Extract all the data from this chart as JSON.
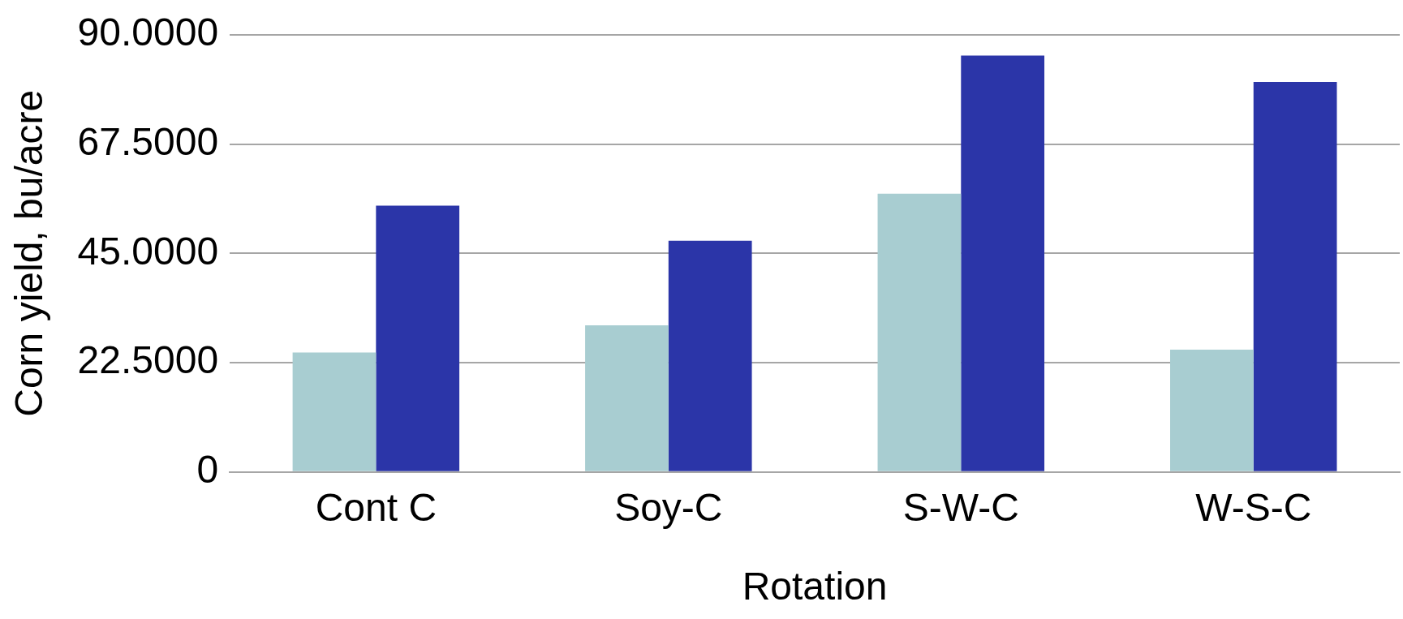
{
  "chart_data": {
    "type": "bar",
    "xlabel": "Rotation",
    "ylabel": "Corn yield, bu/acre",
    "categories": [
      "Cont C",
      "Soy-C",
      "S-W-C",
      "W-S-C"
    ],
    "series": [
      {
        "color": "#a8cdd1",
        "values": [
          24.6,
          30.2,
          57.3,
          25.2
        ]
      },
      {
        "color": "#2b35a8",
        "values": [
          54.8,
          47.6,
          85.7,
          80.3
        ]
      }
    ],
    "ylim": [
      0,
      90
    ],
    "yticks": [
      0,
      {
        "value": 22.5,
        "label": "22.5000"
      },
      {
        "value": 45,
        "label": "45.0000"
      },
      {
        "value": 67.5,
        "label": "67.5000"
      },
      {
        "value": 90,
        "label": "90.0000"
      }
    ],
    "grid": "y",
    "legend": false
  }
}
